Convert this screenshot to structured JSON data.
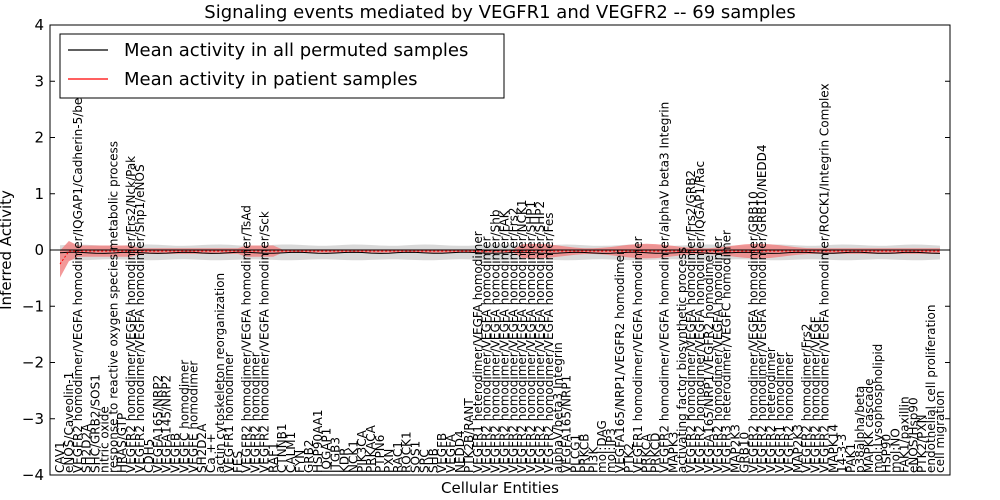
{
  "chart_data": {
    "type": "line",
    "title": "Signaling events mediated by VEGFR1 and VEGFR2 -- 69 samples",
    "xlabel": "Cellular Entities",
    "ylabel": "Inferred Activity",
    "ylim": [
      -4,
      4
    ],
    "yticks": [
      "−4",
      "−3",
      "−2",
      "−1",
      "0",
      "1",
      "2",
      "3",
      "4"
    ],
    "legend_position": "top-left",
    "series": [
      {
        "name": "Mean activity in all permuted samples",
        "color": "#000000",
        "band_color": "#cccccc"
      },
      {
        "name": "Mean activity in patient samples",
        "color": "#ff0000",
        "band_color": "#f08080"
      }
    ],
    "categories": [
      "CAV1",
      "eNOS/Caveolin-1",
      "VEGFR2 homodimer/VEGFA homodimer/IQGAP1/Cadherin-5/beta catenin",
      "SH2D2A",
      "SHC/GRB2/SOS1",
      "nitric oxide",
      "response to reactive oxygen species metabolic process",
      "HRAS/GTP",
      "VEGFR2 homodimer/VEGFA homodimer/Frs2/Nck/Pak",
      "VEGFR2 homodimer/VEGFA homodimer/Shp1/eNOS",
      "CDH5",
      "VEGFA165/NRP2",
      "VEGFA145/NRP2",
      "VEGFB",
      "VEGFC homodimer",
      "VEGFE homodimer",
      "SH2D2A",
      "Ca ++",
      "actin cytoskeleton reorganization",
      "VEGFR1 homodimer",
      "FES",
      "VEGFR2 homodimer/VEGFA homodimer/TsAd",
      "VEGFR2 homodimer",
      "VEGFR2 homodimer/VEGFA homodimer/Sck",
      "RAF1",
      "CTNNB1",
      "CALM1",
      "FYN",
      "GRB2",
      "HSP90AA1",
      "IQGAP1",
      "ITGB3",
      "KDR",
      "NCK1",
      "PIK3CA",
      "PRKACA",
      "PTPN6",
      "PXN",
      "RAC1",
      "ROCK1",
      "SOS1",
      "SRC",
      "SHB",
      "VEGFB",
      "VEGFA",
      "NEDD4",
      "PTK2B/RANT",
      "VEGFR1 heterodimer/VEGFA homodimer",
      "VEGFR2 homodimer/VEGFA homodimer",
      "VEGFR2 homodimer/VEGFA homodimer/Shb",
      "VEGFR2 homodimer/VEGFA homodimer/FAK",
      "VEGFR2 homodimer/VEGFA homodimer/Frs2",
      "VEGFR2 homodimer/VEGFA homodimer/NCK1",
      "VEGFR2 homodimer/VEGFA homodimer/SHP1",
      "VEGFR2 homodimer/VEGFA homodimer/SHP2",
      "VEGFR2 homodimer/VEGFA homodimer/Fes",
      "alphaV/beta3 Integrin",
      "VEGFA165/NRP1",
      "PLCG1",
      "PRKCB",
      "PI3K",
      "mol:DAG",
      "mol:IP3",
      "VEGFA165/NRP1/VEGFR2 homodimer",
      "PTK2",
      "VEGFR1 homodimer/VEGFA homodimer",
      "PRKCA",
      "PRKCD",
      "VEGFR2 homodimer/VEGFA homodimer/alphaV beta3 Integrin",
      "MAPK3",
      "activating factor biosynthetic process",
      "VEGFR2 homodimer/VEGFA homodimer/Frs2/GRB2",
      "VEGFR2 homodimer/VEGFA homodimer/IQGAP1/Rac",
      "VEGFA165/NRP1/VEGFR2 homodimer",
      "VEGFR2 homodimer/VEGFA homodimer",
      "VEGFR3 heterodimer/VEGFC homodimer",
      "MAP2K3",
      "GRB10",
      "VEGFR2 homodimer/VEGFA homodimer/GRB10",
      "VEGFR2 homodimer/VEGFA homodimer/GRB10/NEDD4",
      "VEGFR2 heterodimer",
      "VEGFR1 homodimer",
      "VEGFR2 homodimer",
      "MAP2K3",
      "VEGFR2 homodimer/Frs2",
      "VEGFR2 homodimer/VEGF",
      "VEGFR2 homodimer/VEGFA homodimer/ROCK1/Integrin Complex",
      "MAPK14",
      "14-3-3",
      "PAK1",
      "p38alpha/beta",
      "MAPKK cascade",
      "mol:Lysophospholipid",
      "HSP90",
      "mol:NO",
      "FAK1/paxillin",
      "eNOS/Hsp90",
      "PTK2/PXN",
      "endothelial cell proliferation",
      "cell migration"
    ]
  }
}
